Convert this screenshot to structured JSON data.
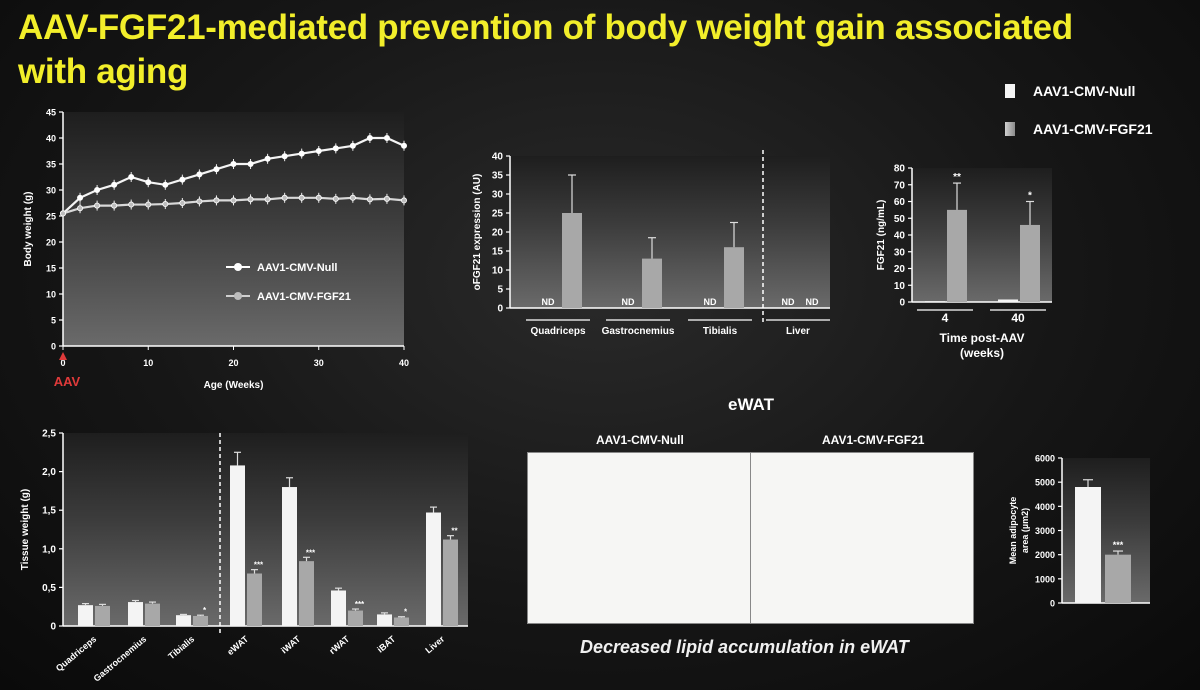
{
  "slide": {
    "title": "AAV-FGF21-mediated prevention of body weight gain associated with aging",
    "legend": [
      {
        "label": "AAV1-CMV-Null"
      },
      {
        "label": "AAV1-CMV-FGF21"
      }
    ],
    "ewat_title": "eWAT",
    "micro_null_label": "AAV1-CMV-Null",
    "micro_fgf_label": "AAV1-CMV-FGF21",
    "caption": "Decreased lipid accumulation in eWAT"
  },
  "colors": {
    "title": "#f2ee2a",
    "null_bar": "#f4f4f4",
    "fgf_bar": "#a8a8a8",
    "aav_marker": "#e03a3a",
    "plot_bg": "#5a5a5a"
  },
  "chart_data": [
    {
      "id": "bodyweight",
      "type": "line",
      "xlabel": "Age (Weeks)",
      "ylabel": "Body weight (g)",
      "xlim": [
        0,
        40
      ],
      "ylim": [
        0,
        45
      ],
      "xticks": [
        "0",
        "10",
        "20",
        "30",
        "40"
      ],
      "yticks": [
        "0",
        "5",
        "10",
        "15",
        "20",
        "25",
        "30",
        "35",
        "40",
        "45"
      ],
      "annotation": "AAV",
      "inner_legend": [
        "AAV1-CMV-Null",
        "AAV1-CMV-FGF21"
      ],
      "series": [
        {
          "name": "AAV1-CMV-Null",
          "x": [
            0,
            2,
            4,
            6,
            8,
            10,
            12,
            14,
            16,
            18,
            20,
            22,
            24,
            26,
            28,
            30,
            32,
            34,
            36,
            38,
            40
          ],
          "y": [
            25.5,
            28.5,
            30,
            31,
            32.5,
            31.5,
            31,
            32,
            33,
            34,
            35,
            35,
            36,
            36.5,
            37,
            37.5,
            38,
            38.5,
            40,
            40,
            38.5
          ]
        },
        {
          "name": "AAV1-CMV-FGF21",
          "x": [
            0,
            2,
            4,
            6,
            8,
            10,
            12,
            14,
            16,
            18,
            20,
            22,
            24,
            26,
            28,
            30,
            32,
            34,
            36,
            38,
            40
          ],
          "y": [
            25.5,
            26.5,
            27,
            27,
            27.2,
            27.2,
            27.3,
            27.5,
            27.8,
            28,
            28,
            28.2,
            28.2,
            28.5,
            28.5,
            28.5,
            28.3,
            28.5,
            28.2,
            28.3,
            28
          ]
        }
      ]
    },
    {
      "id": "ofgf21",
      "type": "bar",
      "ylabel": "oFGF21 expression (AU)",
      "ylim": [
        0,
        40
      ],
      "yticks": [
        "0",
        "5",
        "10",
        "15",
        "20",
        "25",
        "30",
        "35",
        "40"
      ],
      "categories": [
        "Quadriceps",
        "Gastrocnemius",
        "Tibialis",
        "Liver"
      ],
      "series": [
        {
          "name": "AAV1-CMV-Null",
          "values": [
            0,
            0,
            0,
            0
          ],
          "labels": [
            "ND",
            "ND",
            "ND",
            "ND"
          ]
        },
        {
          "name": "AAV1-CMV-FGF21",
          "values": [
            25,
            13,
            16,
            0
          ],
          "errors": [
            10,
            5.5,
            6.5,
            0
          ],
          "labels": [
            "",
            "",
            "",
            "ND"
          ]
        }
      ]
    },
    {
      "id": "fgf21",
      "type": "bar",
      "ylabel": "FGF21 (ng/mL)",
      "xlabel": "Time post-AAV\n(weeks)",
      "ylim": [
        0,
        80
      ],
      "yticks": [
        "0",
        "10",
        "20",
        "30",
        "40",
        "50",
        "60",
        "70",
        "80"
      ],
      "categories": [
        "4",
        "40"
      ],
      "series": [
        {
          "name": "AAV1-CMV-Null",
          "values": [
            0.5,
            1.5
          ]
        },
        {
          "name": "AAV1-CMV-FGF21",
          "values": [
            55,
            46
          ],
          "errors": [
            16,
            14
          ],
          "sig": [
            "**",
            "*"
          ]
        }
      ]
    },
    {
      "id": "tissue",
      "type": "bar",
      "ylabel": "Tissue weight (g)",
      "ylim": [
        0,
        2.5
      ],
      "yticks": [
        "0",
        "0,5",
        "1,0",
        "1,5",
        "2,0",
        "2,5"
      ],
      "categories": [
        "Quadriceps",
        "Gastrocnemius",
        "Tibialis",
        "eWAT",
        "iWAT",
        "rWAT",
        "iBAT",
        "Liver"
      ],
      "series": [
        {
          "name": "AAV1-CMV-Null",
          "values": [
            0.27,
            0.31,
            0.14,
            2.08,
            1.8,
            0.46,
            0.15,
            1.47
          ],
          "errors": [
            0.02,
            0.02,
            0.01,
            0.17,
            0.12,
            0.03,
            0.02,
            0.07
          ]
        },
        {
          "name": "AAV1-CMV-FGF21",
          "values": [
            0.26,
            0.29,
            0.13,
            0.68,
            0.84,
            0.2,
            0.11,
            1.12
          ],
          "errors": [
            0.02,
            0.02,
            0.01,
            0.05,
            0.05,
            0.02,
            0.01,
            0.05
          ],
          "sig": [
            "",
            "",
            "*",
            "***",
            "***",
            "***",
            "*",
            "**"
          ]
        }
      ]
    },
    {
      "id": "adipocyte",
      "type": "bar",
      "ylabel": "Mean adipocyte area (µm2)",
      "ylim": [
        0,
        6000
      ],
      "yticks": [
        "0",
        "1000",
        "2000",
        "3000",
        "4000",
        "5000",
        "6000"
      ],
      "categories": [
        ""
      ],
      "series": [
        {
          "name": "AAV1-CMV-Null",
          "values": [
            4800
          ],
          "errors": [
            300
          ]
        },
        {
          "name": "AAV1-CMV-FGF21",
          "values": [
            2000
          ],
          "errors": [
            150
          ],
          "sig": [
            "***"
          ]
        }
      ]
    }
  ]
}
